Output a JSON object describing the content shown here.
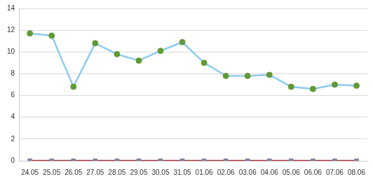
{
  "chart_data": {
    "type": "line",
    "categories": [
      "24.05",
      "25.05",
      "26.05",
      "27.05",
      "28.05",
      "29.05",
      "30.05",
      "31.05",
      "01.06",
      "02.06",
      "03.06",
      "04.06",
      "05.06",
      "06.06",
      "07.06",
      "08.06"
    ],
    "series": [
      {
        "color": "#8ecbef",
        "marker": "circle",
        "line_style": "solid",
        "values": [
          11.7,
          11.5,
          6.8,
          10.8,
          9.8,
          9.2,
          10.1,
          10.9,
          9.0,
          7.8,
          7.8,
          7.9,
          6.8,
          6.6,
          7.0,
          6.9
        ]
      },
      {
        "color": "#b0303a",
        "marker": "square",
        "line_style": "solid",
        "values": [
          0,
          0,
          0,
          0,
          0,
          0,
          0,
          0,
          0,
          0,
          0,
          0,
          0,
          0,
          0,
          0
        ]
      }
    ],
    "ylim": [
      0,
      14
    ],
    "yticks": [
      0,
      2,
      4,
      6,
      8,
      10,
      12,
      14
    ],
    "grid": true
  }
}
